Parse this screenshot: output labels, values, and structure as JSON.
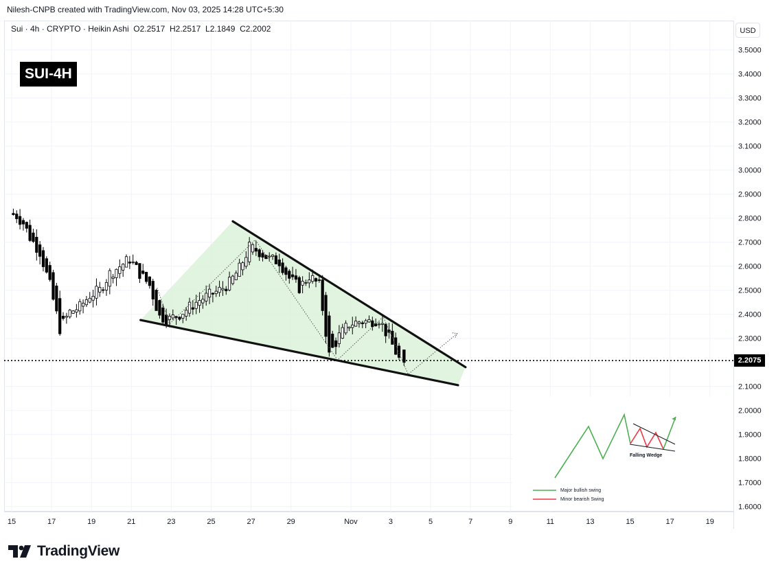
{
  "credit": "Nilesh-CNPB created with TradingView.com, Nov 03, 2025 14:28 UTC+5:30",
  "symbol_line": "Sui · 4h · CRYPTO · Heikin Ashi  O2.2517  H2.2517  L2.1849  C2.2002",
  "currency_button": "USD",
  "badge": "SUI-4H",
  "current_price_label": "2.2075",
  "brand": "TradingView",
  "colors": {
    "candle": "#000000",
    "wedge_fill": "#d7f0d4",
    "major_bullish": "#4caf50",
    "minor_bearish": "#f23645"
  },
  "inset": {
    "pattern_label": "Falling Wedge",
    "legend": [
      {
        "label": "Major bullish swing",
        "color": "#4caf50"
      },
      {
        "label": "Minor bearish Swing",
        "color": "#f23645"
      }
    ]
  },
  "chart_data": {
    "type": "candlestick",
    "style": "Heikin Ashi",
    "title": "",
    "xlabel": "",
    "ylabel": "",
    "x_axis": {
      "type": "date",
      "start": "2025-10-15",
      "end": "2025-11-20"
    },
    "x_ticks": [
      {
        "date": "2025-10-15",
        "label": "15"
      },
      {
        "date": "2025-10-17",
        "label": "17"
      },
      {
        "date": "2025-10-19",
        "label": "19"
      },
      {
        "date": "2025-10-21",
        "label": "21"
      },
      {
        "date": "2025-10-23",
        "label": "23"
      },
      {
        "date": "2025-10-25",
        "label": "25"
      },
      {
        "date": "2025-10-27",
        "label": "27"
      },
      {
        "date": "2025-10-29",
        "label": "29"
      },
      {
        "date": "2025-11-01",
        "label": "Nov"
      },
      {
        "date": "2025-11-03",
        "label": "3"
      },
      {
        "date": "2025-11-05",
        "label": "5"
      },
      {
        "date": "2025-11-07",
        "label": "7"
      },
      {
        "date": "2025-11-09",
        "label": "9"
      },
      {
        "date": "2025-11-11",
        "label": "11"
      },
      {
        "date": "2025-11-13",
        "label": "13"
      },
      {
        "date": "2025-11-15",
        "label": "15"
      },
      {
        "date": "2025-11-17",
        "label": "17"
      },
      {
        "date": "2025-11-19",
        "label": "19"
      }
    ],
    "y_ticks": [
      "3.5000",
      "3.4000",
      "3.3000",
      "3.2000",
      "3.1000",
      "3.0000",
      "2.9000",
      "2.8000",
      "2.7000",
      "2.6000",
      "2.5000",
      "2.4000",
      "2.3000",
      "2.2000",
      "2.1000",
      "2.0000",
      "1.9000",
      "1.8000",
      "1.7000",
      "1.6000"
    ],
    "ylim": [
      1.56,
      3.58
    ],
    "grid": true,
    "current_price": 2.2075,
    "last_bar": {
      "open": 2.2517,
      "high": 2.2517,
      "low": 2.1849,
      "close": 2.2002
    },
    "anchor_points": [
      {
        "date": "2025-10-15 00:00",
        "price": 2.82
      },
      {
        "date": "2025-10-15 08:00",
        "price": 2.81
      },
      {
        "date": "2025-10-15 16:00",
        "price": 2.78
      },
      {
        "date": "2025-10-16 00:00",
        "price": 2.72
      },
      {
        "date": "2025-10-16 12:00",
        "price": 2.66
      },
      {
        "date": "2025-10-17 00:00",
        "price": 2.52
      },
      {
        "date": "2025-10-17 12:00",
        "price": 2.34
      },
      {
        "date": "2025-10-18 00:00",
        "price": 2.41
      },
      {
        "date": "2025-10-18 12:00",
        "price": 2.43
      },
      {
        "date": "2025-10-19 00:00",
        "price": 2.48
      },
      {
        "date": "2025-10-19 12:00",
        "price": 2.5
      },
      {
        "date": "2025-10-20 00:00",
        "price": 2.57
      },
      {
        "date": "2025-10-20 12:00",
        "price": 2.6
      },
      {
        "date": "2025-10-21 00:00",
        "price": 2.63
      },
      {
        "date": "2025-10-21 12:00",
        "price": 2.57
      },
      {
        "date": "2025-10-22 00:00",
        "price": 2.52
      },
      {
        "date": "2025-10-22 12:00",
        "price": 2.39
      },
      {
        "date": "2025-10-23 00:00",
        "price": 2.38
      },
      {
        "date": "2025-10-23 12:00",
        "price": 2.4
      },
      {
        "date": "2025-10-24 00:00",
        "price": 2.43
      },
      {
        "date": "2025-10-24 12:00",
        "price": 2.46
      },
      {
        "date": "2025-10-25 00:00",
        "price": 2.48
      },
      {
        "date": "2025-10-25 12:00",
        "price": 2.5
      },
      {
        "date": "2025-10-26 00:00",
        "price": 2.53
      },
      {
        "date": "2025-10-26 12:00",
        "price": 2.59
      },
      {
        "date": "2025-10-27 00:00",
        "price": 2.68
      },
      {
        "date": "2025-10-27 12:00",
        "price": 2.66
      },
      {
        "date": "2025-10-28 00:00",
        "price": 2.63
      },
      {
        "date": "2025-10-28 12:00",
        "price": 2.62
      },
      {
        "date": "2025-10-29 00:00",
        "price": 2.55
      },
      {
        "date": "2025-10-29 12:00",
        "price": 2.51
      },
      {
        "date": "2025-10-30 00:00",
        "price": 2.56
      },
      {
        "date": "2025-10-30 12:00",
        "price": 2.52
      },
      {
        "date": "2025-10-31 00:00",
        "price": 2.23
      },
      {
        "date": "2025-10-31 12:00",
        "price": 2.31
      },
      {
        "date": "2025-11-01 00:00",
        "price": 2.36
      },
      {
        "date": "2025-11-01 12:00",
        "price": 2.37
      },
      {
        "date": "2025-11-02 00:00",
        "price": 2.37
      },
      {
        "date": "2025-11-02 12:00",
        "price": 2.38
      },
      {
        "date": "2025-11-03 00:00",
        "price": 2.3
      },
      {
        "date": "2025-11-03 14:00",
        "price": 2.2
      }
    ],
    "drawings": {
      "wedge_upper_line": [
        {
          "date": "2025-10-26 02:00",
          "price": 2.787
        },
        {
          "date": "2025-11-06 18:00",
          "price": 2.18
        }
      ],
      "wedge_lower_line": [
        {
          "date": "2025-10-21 11:00",
          "price": 2.376
        },
        {
          "date": "2025-11-06 09:00",
          "price": 2.105
        }
      ],
      "wedge_fill_top": {
        "date": "2025-10-26 02:00",
        "price": 2.787
      },
      "projection_path": [
        {
          "date": "2025-10-22 07:00",
          "price": 2.51
        },
        {
          "date": "2025-10-22 22:00",
          "price": 2.36
        },
        {
          "date": "2025-10-27 05:00",
          "price": 2.71
        },
        {
          "date": "2025-10-31 08:00",
          "price": 2.21
        },
        {
          "date": "2025-11-02 15:00",
          "price": 2.39
        },
        {
          "date": "2025-11-03 21:00",
          "price": 2.15
        },
        {
          "date": "2025-11-06 08:00",
          "price": 2.32
        }
      ]
    }
  }
}
